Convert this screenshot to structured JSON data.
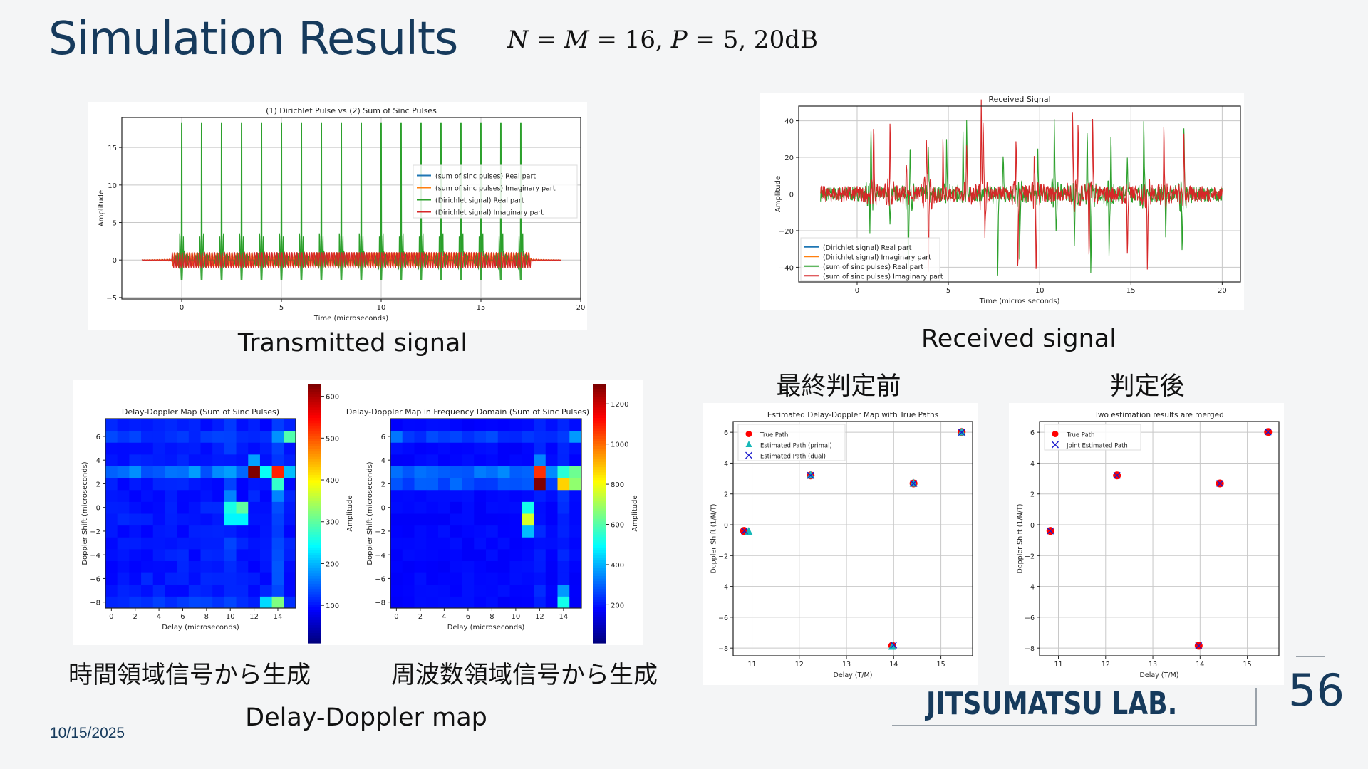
{
  "slide": {
    "title": "Simulation Results",
    "formula": {
      "n": "N",
      "m": "M",
      "eq": " = ",
      "val16": "16, ",
      "p": "P",
      "val5": "5, 20dB"
    },
    "captions": {
      "transmitted": "Transmitted signal",
      "received": "Received signal",
      "before_final": "最終判定前",
      "after_final": "判定後",
      "from_time": "時間領域信号から生成",
      "from_freq": "周波数領域信号から生成",
      "dd_map": "Delay-Doppler map"
    },
    "date": "10/15/2025",
    "logo": "JITSUMATSU LAB.",
    "page_number": "56"
  },
  "colors": {
    "title": "#163a5c",
    "blue": "#1f77b4",
    "orange": "#ff7f0e",
    "green": "#2ca02c",
    "red": "#d62728"
  },
  "chart_data": [
    {
      "id": "transmitted",
      "type": "line",
      "title": "(1) Dirichlet Pulse vs (2) Sum of Sinc Pulses",
      "xlabel": "Time (microseconds)",
      "ylabel": "Amplitude",
      "xlim": [
        -3,
        20
      ],
      "ylim": [
        -5.2,
        19
      ],
      "xticks": [
        0,
        5,
        10,
        15,
        20
      ],
      "yticks": [
        -5,
        0,
        5,
        10,
        15
      ],
      "grid": true,
      "legend_position": "center-right",
      "legend": [
        "(sum of sinc pulses) Real part",
        "(sum of sinc pulses) Imaginary part",
        "(Dirichlet signal) Real part",
        "(Dirichlet signal) Imaginary part"
      ],
      "signal_span": [
        -2,
        19
      ],
      "active_span": [
        -0.5,
        17.5
      ],
      "pulse_times": [
        0,
        1,
        2,
        3,
        4,
        5,
        6,
        7,
        8,
        9,
        10,
        11,
        12,
        13,
        14,
        15,
        16,
        17
      ],
      "pulse_peak": 18.2,
      "pulse_trough": -4,
      "imag_amplitude": 1.1
    },
    {
      "id": "received",
      "type": "line",
      "title": "Received Signal",
      "xlabel": "Time (micros seconds)",
      "ylabel": "Amplitude",
      "xlim": [
        -3.2,
        21
      ],
      "ylim": [
        -48,
        48
      ],
      "xticks": [
        0,
        5,
        10,
        15,
        20
      ],
      "yticks": [
        -40,
        -20,
        0,
        20,
        40
      ],
      "grid": true,
      "legend_position": "lower-left",
      "legend": [
        "(Dirichlet signal) Real part",
        "(Dirichlet signal) Imaginary part",
        "(sum of sinc pulses) Real part",
        "(sum of sinc pulses) Imaginary part"
      ],
      "signal_span": [
        -2,
        20
      ],
      "real_spikes": [
        [
          0.75,
          41
        ],
        [
          0.7,
          -18
        ],
        [
          1.8,
          -15
        ],
        [
          2.9,
          20
        ],
        [
          2.8,
          -42
        ],
        [
          3.9,
          24
        ],
        [
          4.9,
          29
        ],
        [
          5.8,
          37
        ],
        [
          6.0,
          36
        ],
        [
          7.7,
          -44
        ],
        [
          8.0,
          21
        ],
        [
          8.9,
          -34
        ],
        [
          9.9,
          22
        ],
        [
          10.8,
          39
        ],
        [
          10.9,
          -18
        ],
        [
          11.9,
          -30
        ],
        [
          12.6,
          28
        ],
        [
          12.8,
          -45
        ],
        [
          13.8,
          -34
        ],
        [
          13.9,
          29
        ],
        [
          14.8,
          17
        ],
        [
          15.7,
          36
        ],
        [
          16.9,
          -20
        ],
        [
          17.8,
          -37
        ],
        [
          17.9,
          30
        ]
      ],
      "imag_spikes": [
        [
          0.9,
          39
        ],
        [
          1.8,
          39
        ],
        [
          2.7,
          19
        ],
        [
          3.8,
          31
        ],
        [
          3.9,
          -42
        ],
        [
          4.7,
          29
        ],
        [
          6.0,
          28
        ],
        [
          6.8,
          42
        ],
        [
          6.9,
          44
        ],
        [
          7.0,
          -20
        ],
        [
          8.7,
          30
        ],
        [
          8.8,
          -39
        ],
        [
          9.7,
          21
        ],
        [
          9.8,
          -42
        ],
        [
          11.8,
          43
        ],
        [
          12.1,
          39
        ],
        [
          12.9,
          39
        ],
        [
          12.7,
          -30
        ],
        [
          14.8,
          -33
        ],
        [
          15.9,
          -37
        ],
        [
          16.8,
          39
        ],
        [
          17.9,
          29
        ]
      ],
      "noise_amplitude": 4
    },
    {
      "id": "dd-time",
      "type": "heatmap",
      "title": "Delay-Doppler Map (Sum of Sinc Pulses)",
      "xlabel": "Delay (microseconds)",
      "ylabel": "Doppler Shift (microseconds)",
      "colorbar_label": "Amplitude",
      "delays": [
        0,
        1,
        2,
        3,
        4,
        5,
        6,
        7,
        8,
        9,
        10,
        11,
        12,
        13,
        14,
        15
      ],
      "dopplers": [
        -8,
        -7,
        -6,
        -5,
        -4,
        -3,
        -2,
        -1,
        0,
        1,
        2,
        3,
        4,
        5,
        6,
        7
      ],
      "xticks": [
        0,
        2,
        4,
        6,
        8,
        10,
        12,
        14
      ],
      "yticks": [
        -8,
        -6,
        -4,
        -2,
        0,
        2,
        4,
        6
      ],
      "vmin": 10,
      "vmax": 630,
      "cbar_ticks": [
        100,
        200,
        300,
        400,
        500,
        600
      ],
      "background": 35,
      "row_stripes": [
        [
          3,
          100
        ],
        [
          6,
          55
        ],
        [
          -8,
          55
        ]
      ],
      "col_stripes": [
        [
          14,
          75
        ],
        [
          10,
          60
        ]
      ],
      "hot_cells": [
        [
          12,
          3,
          630
        ],
        [
          14,
          3,
          520
        ],
        [
          13,
          3,
          200
        ],
        [
          15,
          3,
          150
        ],
        [
          14,
          2,
          230
        ],
        [
          12,
          4,
          130
        ],
        [
          10,
          0,
          210
        ],
        [
          11,
          0,
          260
        ],
        [
          10,
          -1,
          190
        ],
        [
          11,
          -1,
          190
        ],
        [
          10,
          1,
          110
        ],
        [
          14,
          1,
          110
        ],
        [
          15,
          6,
          250
        ],
        [
          14,
          6,
          120
        ],
        [
          14,
          -8,
          280
        ],
        [
          13,
          -8,
          170
        ]
      ]
    },
    {
      "id": "dd-freq",
      "type": "heatmap",
      "title": "Delay-Doppler Map in Frequency Domain (Sum of Sinc Pulses)",
      "xlabel": "Delay (microseconds)",
      "ylabel": "Doppler Shift (microseconds)",
      "colorbar_label": "Amplitude",
      "delays": [
        0,
        1,
        2,
        3,
        4,
        5,
        6,
        7,
        8,
        9,
        10,
        11,
        12,
        13,
        14,
        15
      ],
      "dopplers": [
        -8,
        -7,
        -6,
        -5,
        -4,
        -3,
        -2,
        -1,
        0,
        1,
        2,
        3,
        4,
        5,
        6,
        7
      ],
      "xticks": [
        0,
        2,
        4,
        6,
        8,
        10,
        12,
        14
      ],
      "yticks": [
        -8,
        -6,
        -4,
        -2,
        0,
        2,
        4,
        6
      ],
      "vmin": 10,
      "vmax": 1300,
      "cbar_ticks": [
        200,
        400,
        600,
        800,
        1000,
        1200
      ],
      "background": 40,
      "row_stripes": [
        [
          3,
          200
        ],
        [
          2,
          150
        ],
        [
          6,
          110
        ]
      ],
      "col_stripes": [
        [
          14,
          90
        ],
        [
          12,
          80
        ]
      ],
      "hot_cells": [
        [
          12,
          3,
          1050
        ],
        [
          12,
          2,
          1300
        ],
        [
          12,
          4,
          220
        ],
        [
          13,
          3,
          230
        ],
        [
          14,
          3,
          450
        ],
        [
          15,
          3,
          550
        ],
        [
          14,
          2,
          820
        ],
        [
          15,
          2,
          600
        ],
        [
          11,
          0,
          420
        ],
        [
          11,
          -1,
          700
        ],
        [
          11,
          -2,
          300
        ],
        [
          14,
          -8,
          420
        ],
        [
          14,
          -7,
          250
        ],
        [
          15,
          6,
          250
        ],
        [
          0,
          6,
          200
        ]
      ]
    },
    {
      "id": "estimate-before",
      "type": "scatter",
      "title": "Estimated Delay-Doppler Map with True Paths",
      "xlabel": "Delay (T/M)",
      "ylabel": "Doppler Shift (1/N/T)",
      "xlim": [
        10.6,
        15.67
      ],
      "ylim": [
        -8.5,
        6.7
      ],
      "xticks": [
        11,
        12,
        13,
        14,
        15
      ],
      "yticks": [
        -8,
        -6,
        -4,
        -2,
        0,
        2,
        4,
        6
      ],
      "legend_position": "upper-left",
      "series": [
        {
          "name": "True Path",
          "marker": "circle",
          "color": "#ff0000",
          "x": [
            10.83,
            12.24,
            14.42,
            13.97,
            15.44
          ],
          "y": [
            -0.4,
            3.2,
            2.68,
            -7.85,
            6.02
          ]
        },
        {
          "name": "Estimated Path (primal)",
          "marker": "triangle",
          "color": "#17b8b8",
          "x": [
            10.93,
            12.24,
            14.42,
            13.97,
            15.44
          ],
          "y": [
            -0.45,
            3.2,
            2.68,
            -7.9,
            6.0
          ]
        },
        {
          "name": "Estimated Path (dual)",
          "marker": "x",
          "color": "#1a1acc",
          "x": [
            10.84,
            12.24,
            14.42,
            14.0,
            15.44
          ],
          "y": [
            -0.4,
            3.2,
            2.68,
            -7.8,
            6.0
          ]
        }
      ]
    },
    {
      "id": "estimate-merged",
      "type": "scatter",
      "title": "Two estimation results are merged",
      "xlabel": "Delay (T/M)",
      "ylabel": "Doppler Shift (1/N/T)",
      "xlim": [
        10.6,
        15.67
      ],
      "ylim": [
        -8.5,
        6.7
      ],
      "xticks": [
        11,
        12,
        13,
        14,
        15
      ],
      "yticks": [
        -8,
        -6,
        -4,
        -2,
        0,
        2,
        4,
        6
      ],
      "legend_position": "upper-left",
      "series": [
        {
          "name": "True Path",
          "marker": "circle",
          "color": "#ff0000",
          "x": [
            10.83,
            12.24,
            14.42,
            13.97,
            15.44
          ],
          "y": [
            -0.4,
            3.2,
            2.68,
            -7.85,
            6.02
          ]
        },
        {
          "name": "Joint Estimated Path",
          "marker": "x",
          "color": "#1a1acc",
          "x": [
            10.83,
            12.24,
            14.42,
            13.97,
            15.44
          ],
          "y": [
            -0.4,
            3.2,
            2.68,
            -7.85,
            6.02
          ]
        }
      ]
    }
  ]
}
